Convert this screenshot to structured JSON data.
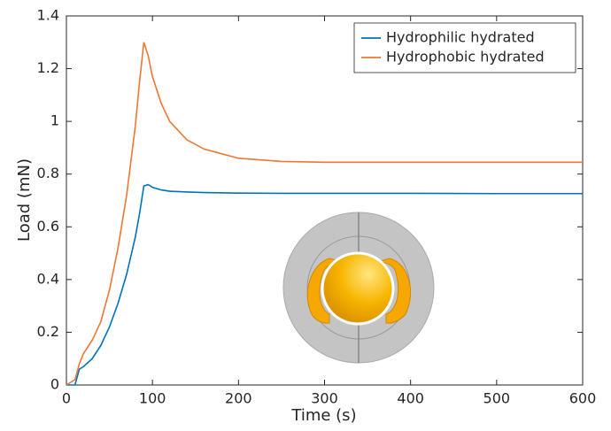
{
  "chart_data": {
    "type": "line",
    "x_label": "Time (s)",
    "y_label": "Load (mN)",
    "x": [
      0,
      10,
      15,
      20,
      30,
      40,
      50,
      60,
      70,
      80,
      85,
      90,
      95,
      100,
      110,
      120,
      140,
      160,
      200,
      250,
      300,
      400,
      500,
      600
    ],
    "series": [
      {
        "name": "Hydrophilic hydrated",
        "color": "#0072bd",
        "values": [
          0,
          0,
          0.06,
          0.07,
          0.1,
          0.15,
          0.22,
          0.31,
          0.42,
          0.56,
          0.65,
          0.755,
          0.76,
          0.75,
          0.74,
          0.735,
          0.732,
          0.73,
          0.728,
          0.727,
          0.727,
          0.727,
          0.726,
          0.726
        ]
      },
      {
        "name": "Hydrophobic hydrated",
        "color": "#ee7733",
        "values": [
          0,
          0.02,
          0.08,
          0.12,
          0.17,
          0.24,
          0.36,
          0.52,
          0.72,
          0.98,
          1.15,
          1.3,
          1.25,
          1.17,
          1.07,
          1.0,
          0.93,
          0.895,
          0.86,
          0.848,
          0.845,
          0.845,
          0.845,
          0.845
        ]
      }
    ],
    "xlim": [
      0,
      600
    ],
    "xticks": [
      0,
      100,
      200,
      300,
      400,
      500,
      600
    ],
    "ylim": [
      0,
      1.4
    ],
    "yticks": [
      0,
      0.2,
      0.4,
      0.6,
      0.8,
      1,
      1.2,
      1.4
    ],
    "grid": false,
    "legend": "upper right"
  }
}
